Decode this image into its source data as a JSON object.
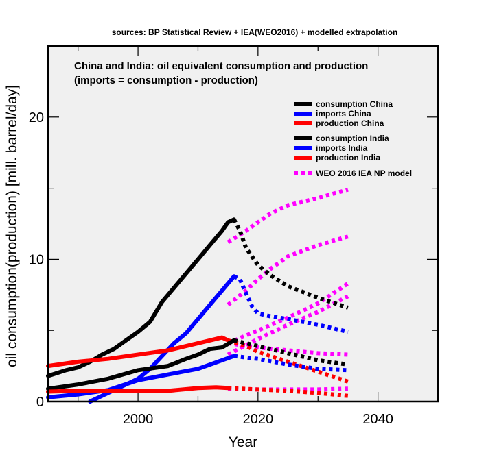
{
  "chart_data": {
    "type": "line",
    "source_note": "sources: BP Statistical Review + IEA(WEO2016) + modelled extrapolation",
    "title": "China and India: oil equivalent consumption and production",
    "subtitle": "(imports = consumption - production)",
    "xlabel": "Year",
    "ylabel": "oil consumption(production) [mill. barrel/day]",
    "xlim": [
      1985,
      2050
    ],
    "ylim": [
      0,
      25
    ],
    "xticks": [
      2000,
      2020,
      2040
    ],
    "yticks": [
      0,
      10,
      20
    ],
    "grid": false,
    "legend_position": "top-right",
    "legend": [
      {
        "label": "consumption China",
        "color": "#000000",
        "style": "solid"
      },
      {
        "label": "imports China",
        "color": "#0000ff",
        "style": "solid"
      },
      {
        "label": "production China",
        "color": "#ff0000",
        "style": "solid"
      },
      {
        "label": "consumption India",
        "color": "#000000",
        "style": "solid"
      },
      {
        "label": "imports India",
        "color": "#0000ff",
        "style": "solid"
      },
      {
        "label": "production India",
        "color": "#ff0000",
        "style": "solid"
      },
      {
        "label": "WEO 2016 IEA NP model",
        "color": "#ff00ff",
        "style": "dotted"
      }
    ],
    "series": [
      {
        "name": "consumption China",
        "color": "#000000",
        "style": "solid",
        "x": [
          1985,
          1988,
          1990,
          1992,
          1994,
          1996,
          1998,
          2000,
          2002,
          2004,
          2006,
          2008,
          2010,
          2012,
          2014,
          2015,
          2016
        ],
        "y": [
          1.8,
          2.2,
          2.4,
          2.8,
          3.3,
          3.7,
          4.3,
          4.9,
          5.6,
          7.0,
          8.0,
          9.0,
          10.0,
          11.0,
          12.0,
          12.6,
          12.8
        ]
      },
      {
        "name": "consumption China (extrapolation)",
        "color": "#000000",
        "style": "dotted",
        "x": [
          2016,
          2017,
          2018,
          2020,
          2022,
          2025,
          2030,
          2035
        ],
        "y": [
          12.8,
          12.0,
          10.8,
          9.6,
          8.9,
          8.1,
          7.3,
          6.6
        ]
      },
      {
        "name": "imports China",
        "color": "#0000ff",
        "style": "solid",
        "x": [
          1992,
          1994,
          1996,
          1998,
          2000,
          2002,
          2004,
          2006,
          2008,
          2010,
          2012,
          2014,
          2016
        ],
        "y": [
          0.0,
          0.4,
          0.8,
          1.2,
          1.6,
          2.3,
          3.2,
          4.1,
          4.8,
          5.8,
          6.8,
          7.8,
          8.8
        ]
      },
      {
        "name": "imports China (extrapolation)",
        "color": "#0000ff",
        "style": "dotted",
        "x": [
          2016,
          2017,
          2018,
          2019,
          2020,
          2022,
          2025,
          2030,
          2035
        ],
        "y": [
          8.8,
          8.6,
          7.6,
          6.7,
          6.2,
          6.0,
          5.8,
          5.4,
          4.9
        ]
      },
      {
        "name": "production China",
        "color": "#ff0000",
        "style": "solid",
        "x": [
          1985,
          1990,
          1995,
          2000,
          2005,
          2010,
          2013,
          2014,
          2015
        ],
        "y": [
          2.5,
          2.8,
          3.0,
          3.3,
          3.6,
          4.1,
          4.4,
          4.5,
          4.3
        ]
      },
      {
        "name": "production China (extrapolation)",
        "color": "#ff0000",
        "style": "dotted",
        "x": [
          2015,
          2018,
          2020,
          2025,
          2030,
          2035
        ],
        "y": [
          4.3,
          3.9,
          3.5,
          2.8,
          2.1,
          1.4
        ]
      },
      {
        "name": "consumption India",
        "color": "#000000",
        "style": "solid",
        "x": [
          1985,
          1990,
          1995,
          2000,
          2005,
          2008,
          2010,
          2012,
          2014,
          2016
        ],
        "y": [
          0.9,
          1.2,
          1.6,
          2.2,
          2.5,
          3.0,
          3.3,
          3.7,
          3.8,
          4.3
        ]
      },
      {
        "name": "consumption India (extrapolation)",
        "color": "#000000",
        "style": "dotted",
        "x": [
          2016,
          2020,
          2025,
          2030,
          2035
        ],
        "y": [
          4.3,
          3.9,
          3.4,
          2.9,
          2.6
        ]
      },
      {
        "name": "imports India",
        "color": "#0000ff",
        "style": "solid",
        "x": [
          1985,
          1990,
          1995,
          2000,
          2005,
          2010,
          2014,
          2016
        ],
        "y": [
          0.3,
          0.5,
          0.8,
          1.5,
          1.9,
          2.3,
          2.9,
          3.2
        ]
      },
      {
        "name": "imports India (extrapolation)",
        "color": "#0000ff",
        "style": "dotted",
        "x": [
          2016,
          2020,
          2025,
          2030,
          2035
        ],
        "y": [
          3.2,
          3.0,
          2.6,
          2.3,
          2.2
        ]
      },
      {
        "name": "production India",
        "color": "#ff0000",
        "style": "solid",
        "x": [
          1985,
          1990,
          1995,
          2000,
          2005,
          2010,
          2013,
          2015
        ],
        "y": [
          0.7,
          0.75,
          0.75,
          0.75,
          0.75,
          0.95,
          1.0,
          0.95
        ]
      },
      {
        "name": "production India (extrapolation)",
        "color": "#ff0000",
        "style": "dotted",
        "x": [
          2015,
          2020,
          2025,
          2030,
          2035
        ],
        "y": [
          0.95,
          0.85,
          0.75,
          0.6,
          0.4
        ]
      },
      {
        "name": "WEO 2016 IEA NP model - consumption China",
        "color": "#ff00ff",
        "style": "dotted",
        "x": [
          2015,
          2018,
          2020,
          2022,
          2025,
          2030,
          2035
        ],
        "y": [
          11.2,
          12.0,
          12.6,
          13.2,
          13.8,
          14.3,
          14.9
        ]
      },
      {
        "name": "WEO 2016 IEA NP model - imports China",
        "color": "#ff00ff",
        "style": "dotted",
        "x": [
          2015,
          2018,
          2020,
          2022,
          2025,
          2030,
          2035
        ],
        "y": [
          6.8,
          7.8,
          8.6,
          9.3,
          10.2,
          11.0,
          11.6
        ]
      },
      {
        "name": "WEO 2016 IEA NP model - consumption India",
        "color": "#ff00ff",
        "style": "dotted",
        "x": [
          2015,
          2020,
          2025,
          2030,
          2035
        ],
        "y": [
          4.1,
          5.0,
          5.9,
          6.9,
          8.3
        ]
      },
      {
        "name": "WEO 2016 IEA NP model - imports India",
        "color": "#ff00ff",
        "style": "dotted",
        "x": [
          2015,
          2020,
          2025,
          2030,
          2035
        ],
        "y": [
          3.3,
          4.4,
          5.4,
          6.3,
          7.4
        ]
      },
      {
        "name": "WEO 2016 IEA NP model - production China",
        "color": "#ff00ff",
        "style": "dotted",
        "x": [
          2015,
          2020,
          2025,
          2030,
          2035
        ],
        "y": [
          4.1,
          3.8,
          3.6,
          3.4,
          3.3
        ]
      },
      {
        "name": "WEO 2016 IEA NP model - production India",
        "color": "#ff00ff",
        "style": "dotted",
        "x": [
          2015,
          2020,
          2025,
          2030,
          2035
        ],
        "y": [
          0.9,
          0.85,
          0.85,
          0.85,
          0.9
        ]
      }
    ]
  }
}
